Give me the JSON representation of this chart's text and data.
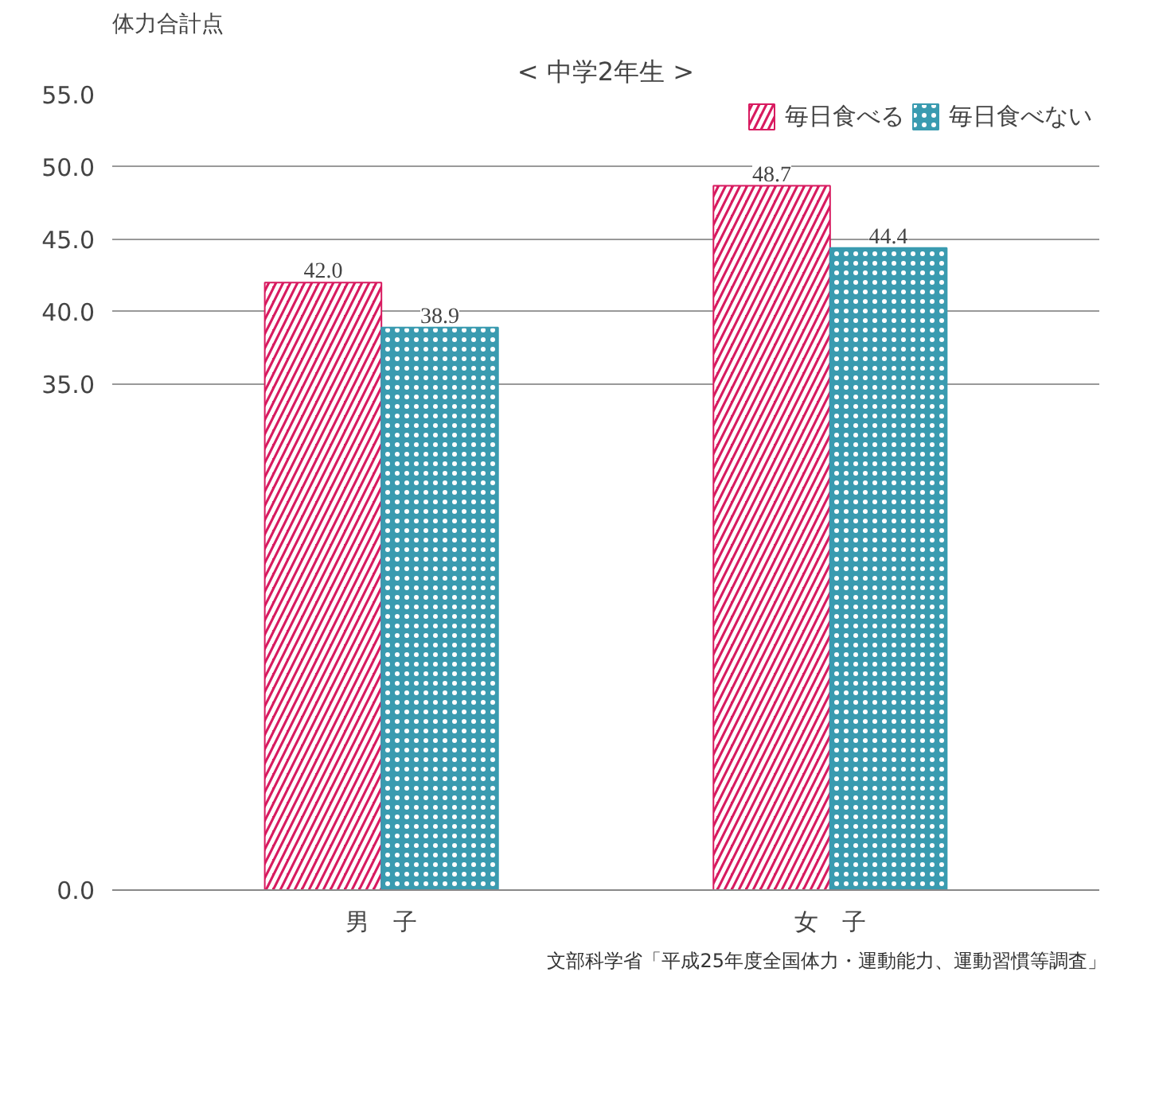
{
  "chart_data": {
    "type": "bar",
    "title": "< 中学2年生 >",
    "ylabel": "体力合計点",
    "categories": [
      "男　子",
      "女　子"
    ],
    "series": [
      {
        "name": "毎日食べる",
        "color": "#d81b60",
        "values": [
          42.0,
          48.7
        ],
        "value_labels": [
          "42.0",
          "48.7"
        ]
      },
      {
        "name": "毎日食べない",
        "color": "#3a9bb0",
        "values": [
          38.9,
          44.4
        ],
        "value_labels": [
          "38.9",
          "44.4"
        ]
      }
    ],
    "ylim": [
      0,
      55
    ],
    "yticks": [
      {
        "value": 0,
        "label": "0.0"
      },
      {
        "value": 35,
        "label": "35.0"
      },
      {
        "value": 40,
        "label": "40.0"
      },
      {
        "value": 45,
        "label": "45.0"
      },
      {
        "value": 50,
        "label": "50.0"
      },
      {
        "value": 55,
        "label": "55.0"
      }
    ],
    "grid": "y",
    "legend": "top right",
    "annotations": [
      "文部科学省「平成25年度全国体力・運動能力、運動習慣等調査」"
    ]
  }
}
